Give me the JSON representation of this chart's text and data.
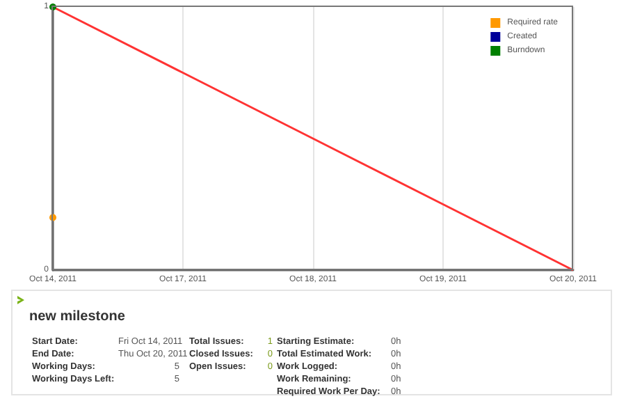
{
  "chart_data": [
    {
      "type": "line",
      "categories": [
        "Oct 14, 2011",
        "Oct 17, 2011",
        "Oct 18, 2011",
        "Oct 19, 2011",
        "Oct 20, 2011"
      ],
      "ylim": [
        0,
        1
      ],
      "yticks": [
        0,
        1
      ],
      "grid": "x",
      "legend": "top right",
      "series": [
        {
          "color": "#ff3333",
          "values": [
            1,
            0.75,
            0.5,
            0.25,
            0
          ],
          "marker": "none"
        },
        {
          "name": "Required rate",
          "color": "#ff9900",
          "values": [
            0.2,
            null,
            null,
            null,
            null
          ],
          "marker": "circle"
        },
        {
          "name": "Created",
          "color": "#000099",
          "values": [
            null,
            null,
            null,
            null,
            null
          ],
          "marker": "circle"
        },
        {
          "name": "Burndown",
          "color": "#008000",
          "values": [
            1,
            null,
            null,
            null,
            null
          ],
          "marker": "circle"
        }
      ]
    },
    {
      "type": "other",
      "title": "new milestone",
      "annotations": [
        "Start Date:",
        "Fri Oct 14, 2011",
        "End Date:",
        "Thu Oct 20, 2011",
        "Working Days:",
        "5",
        "Working Days Left:",
        "5",
        "Total Issues:",
        "1",
        "Closed Issues:",
        "0",
        "Open Issues:",
        "0",
        "Starting Estimate:",
        "0h",
        "Total Estimated Work:",
        "0h",
        "Work Logged:",
        "0h",
        "Work Remaining:",
        "0h",
        "Required Work Per Day:",
        "0h"
      ]
    }
  ]
}
